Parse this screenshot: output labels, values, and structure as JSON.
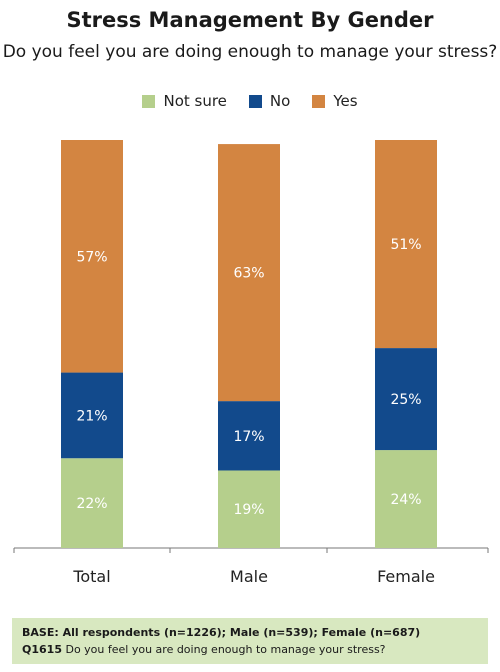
{
  "chart_data": {
    "type": "bar",
    "stacked": true,
    "title": "Stress Management By Gender",
    "subtitle": "Do you feel you are doing enough to manage your stress?",
    "categories": [
      "Total",
      "Male",
      "Female"
    ],
    "series": [
      {
        "name": "Not sure",
        "values": [
          22,
          19,
          24
        ],
        "color": "#b5cf8c",
        "labels": [
          "22%",
          "19%",
          "24%"
        ]
      },
      {
        "name": "No",
        "values": [
          21,
          17,
          25
        ],
        "color": "#124a8c",
        "labels": [
          "21%",
          "17%",
          "25%"
        ]
      },
      {
        "name": "Yes",
        "values": [
          57,
          63,
          51
        ],
        "color": "#d38541",
        "labels": [
          "57%",
          "63%",
          "51%"
        ]
      }
    ],
    "ylim": [
      0,
      100
    ],
    "grid": false,
    "legend_position": "top"
  },
  "footer": {
    "line1": "BASE: All respondents (n=1226); Male (n=539); Female (n=687)",
    "line2_code": "Q1615",
    "line2_text": "Do you feel you are doing enough to manage your stress?"
  }
}
